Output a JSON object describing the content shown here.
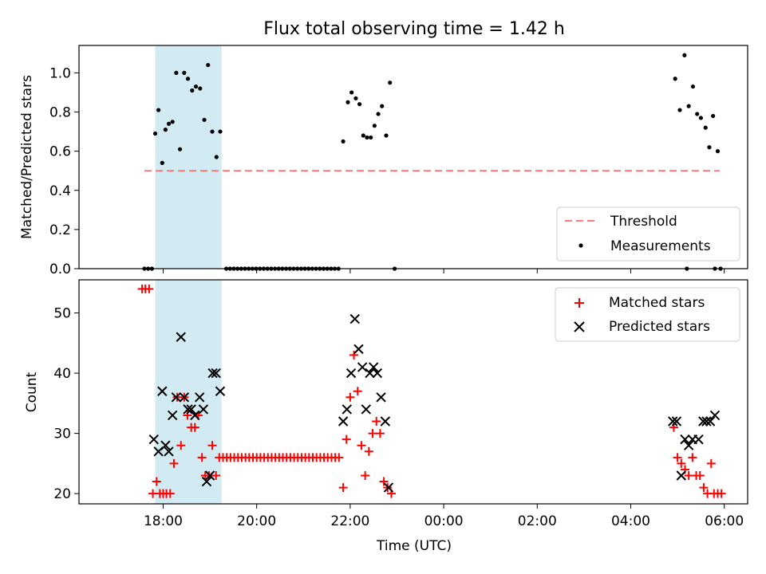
{
  "figure": {
    "title": "Flux total observing time = 1.42 h"
  },
  "chart_data": [
    {
      "type": "scatter",
      "ylabel": "Matched/Predicted stars",
      "xlabel": "",
      "x_unit": "hours (UTC, continuing past midnight)",
      "xlim": [
        16.2,
        30.5
      ],
      "ylim": [
        0,
        1.14
      ],
      "yticks": [
        0.0,
        0.2,
        0.4,
        0.6,
        0.8,
        1.0
      ],
      "ytick_labels": [
        "0.0",
        "0.2",
        "0.4",
        "0.6",
        "0.8",
        "1.0"
      ],
      "grid": false,
      "legend_position": "lower-right",
      "highlight_span": [
        17.83,
        19.25
      ],
      "threshold": {
        "name": "Threshold",
        "value": 0.5,
        "x_range": [
          17.6,
          29.9
        ],
        "color": "#ff7777"
      },
      "series": [
        {
          "name": "Measurements",
          "color": "#000000",
          "points": [
            [
              17.6,
              0
            ],
            [
              17.68,
              0
            ],
            [
              17.76,
              0
            ],
            [
              17.83,
              0.69
            ],
            [
              17.9,
              0.81
            ],
            [
              17.98,
              0.54
            ],
            [
              18.05,
              0.71
            ],
            [
              18.12,
              0.74
            ],
            [
              18.2,
              0.75
            ],
            [
              18.28,
              1.0
            ],
            [
              18.36,
              0.61
            ],
            [
              18.45,
              1.0
            ],
            [
              18.53,
              0.97
            ],
            [
              18.62,
              0.91
            ],
            [
              18.7,
              0.93
            ],
            [
              18.79,
              0.92
            ],
            [
              18.88,
              0.76
            ],
            [
              18.96,
              1.04
            ],
            [
              19.05,
              0.7
            ],
            [
              19.14,
              0.57
            ],
            [
              19.22,
              0.7
            ],
            [
              19.35,
              0
            ],
            [
              19.43,
              0
            ],
            [
              19.51,
              0
            ],
            [
              19.59,
              0
            ],
            [
              19.67,
              0
            ],
            [
              19.75,
              0
            ],
            [
              19.83,
              0
            ],
            [
              19.91,
              0
            ],
            [
              19.99,
              0
            ],
            [
              20.07,
              0
            ],
            [
              20.15,
              0
            ],
            [
              20.23,
              0
            ],
            [
              20.31,
              0
            ],
            [
              20.39,
              0
            ],
            [
              20.47,
              0
            ],
            [
              20.55,
              0
            ],
            [
              20.63,
              0
            ],
            [
              20.71,
              0
            ],
            [
              20.79,
              0
            ],
            [
              20.87,
              0
            ],
            [
              20.95,
              0
            ],
            [
              21.03,
              0
            ],
            [
              21.11,
              0
            ],
            [
              21.19,
              0
            ],
            [
              21.27,
              0
            ],
            [
              21.35,
              0
            ],
            [
              21.43,
              0
            ],
            [
              21.51,
              0
            ],
            [
              21.59,
              0
            ],
            [
              21.67,
              0
            ],
            [
              21.75,
              0
            ],
            [
              21.85,
              0.65
            ],
            [
              21.95,
              0.85
            ],
            [
              22.03,
              0.9
            ],
            [
              22.12,
              0.87
            ],
            [
              22.2,
              0.84
            ],
            [
              22.28,
              0.68
            ],
            [
              22.36,
              0.67
            ],
            [
              22.44,
              0.67
            ],
            [
              22.52,
              0.73
            ],
            [
              22.6,
              0.79
            ],
            [
              22.68,
              0.83
            ],
            [
              22.77,
              0.68
            ],
            [
              22.85,
              0.95
            ],
            [
              22.95,
              0
            ],
            [
              29.2,
              0
            ],
            [
              29.8,
              0
            ],
            [
              29.92,
              0
            ],
            [
              28.95,
              0.97
            ],
            [
              29.05,
              0.81
            ],
            [
              29.15,
              1.09
            ],
            [
              29.24,
              0.83
            ],
            [
              29.33,
              0.93
            ],
            [
              29.42,
              0.79
            ],
            [
              29.5,
              0.77
            ],
            [
              29.6,
              0.72
            ],
            [
              29.68,
              0.62
            ],
            [
              29.76,
              0.78
            ],
            [
              29.86,
              0.6
            ]
          ]
        }
      ]
    },
    {
      "type": "scatter",
      "ylabel": "Count",
      "xlabel": "Time (UTC)",
      "x_unit": "hours (UTC, continuing past midnight)",
      "xlim": [
        16.2,
        30.5
      ],
      "ylim": [
        18.3,
        55.5
      ],
      "yticks": [
        20,
        30,
        40,
        50
      ],
      "ytick_labels": [
        "20",
        "30",
        "40",
        "50"
      ],
      "xticks": [
        18,
        20,
        22,
        24,
        26,
        28,
        30
      ],
      "xtick_labels": [
        "18:00",
        "20:00",
        "22:00",
        "00:00",
        "02:00",
        "04:00",
        "06:00"
      ],
      "grid": false,
      "legend_position": "upper-right",
      "highlight_span": [
        17.83,
        19.25
      ],
      "series": [
        {
          "name": "Matched stars",
          "marker": "plus",
          "color": "#ff0000",
          "points": [
            [
              17.55,
              54
            ],
            [
              17.62,
              54
            ],
            [
              17.7,
              54
            ],
            [
              17.78,
              20
            ],
            [
              17.86,
              22
            ],
            [
              17.93,
              20
            ],
            [
              18.0,
              20
            ],
            [
              18.07,
              20
            ],
            [
              18.15,
              20
            ],
            [
              18.23,
              25
            ],
            [
              18.3,
              36
            ],
            [
              18.38,
              28
            ],
            [
              18.45,
              36
            ],
            [
              18.52,
              33
            ],
            [
              18.6,
              31
            ],
            [
              18.68,
              31
            ],
            [
              18.75,
              33
            ],
            [
              18.83,
              26
            ],
            [
              18.9,
              23
            ],
            [
              18.98,
              23
            ],
            [
              19.05,
              28
            ],
            [
              19.13,
              23
            ],
            [
              19.2,
              26
            ],
            [
              19.28,
              26
            ],
            [
              19.36,
              26
            ],
            [
              19.44,
              26
            ],
            [
              19.52,
              26
            ],
            [
              19.6,
              26
            ],
            [
              19.68,
              26
            ],
            [
              19.76,
              26
            ],
            [
              19.84,
              26
            ],
            [
              19.92,
              26
            ],
            [
              20.0,
              26
            ],
            [
              20.08,
              26
            ],
            [
              20.16,
              26
            ],
            [
              20.24,
              26
            ],
            [
              20.32,
              26
            ],
            [
              20.4,
              26
            ],
            [
              20.48,
              26
            ],
            [
              20.56,
              26
            ],
            [
              20.64,
              26
            ],
            [
              20.72,
              26
            ],
            [
              20.8,
              26
            ],
            [
              20.88,
              26
            ],
            [
              20.96,
              26
            ],
            [
              21.04,
              26
            ],
            [
              21.12,
              26
            ],
            [
              21.2,
              26
            ],
            [
              21.28,
              26
            ],
            [
              21.36,
              26
            ],
            [
              21.44,
              26
            ],
            [
              21.52,
              26
            ],
            [
              21.6,
              26
            ],
            [
              21.68,
              26
            ],
            [
              21.76,
              26
            ],
            [
              21.85,
              21
            ],
            [
              21.92,
              29
            ],
            [
              22.0,
              36
            ],
            [
              22.08,
              43
            ],
            [
              22.16,
              37
            ],
            [
              22.24,
              28
            ],
            [
              22.32,
              23
            ],
            [
              22.4,
              27
            ],
            [
              22.48,
              30
            ],
            [
              22.56,
              32
            ],
            [
              22.64,
              30
            ],
            [
              22.72,
              22
            ],
            [
              22.8,
              21
            ],
            [
              22.88,
              20
            ],
            [
              28.92,
              31
            ],
            [
              29.0,
              26
            ],
            [
              29.08,
              25
            ],
            [
              29.16,
              24
            ],
            [
              29.24,
              23
            ],
            [
              29.32,
              26
            ],
            [
              29.4,
              23
            ],
            [
              29.48,
              23
            ],
            [
              29.56,
              21
            ],
            [
              29.64,
              20
            ],
            [
              29.72,
              25
            ],
            [
              29.78,
              20
            ],
            [
              29.86,
              20
            ],
            [
              29.94,
              20
            ]
          ]
        },
        {
          "name": "Predicted stars",
          "marker": "x",
          "color": "#000000",
          "points": [
            [
              17.8,
              29
            ],
            [
              17.9,
              27
            ],
            [
              17.98,
              37
            ],
            [
              18.05,
              28
            ],
            [
              18.12,
              27
            ],
            [
              18.2,
              33
            ],
            [
              18.28,
              36
            ],
            [
              18.38,
              46
            ],
            [
              18.45,
              36
            ],
            [
              18.53,
              34
            ],
            [
              18.6,
              34
            ],
            [
              18.68,
              33
            ],
            [
              18.78,
              36
            ],
            [
              18.86,
              34
            ],
            [
              18.93,
              22
            ],
            [
              19.0,
              23
            ],
            [
              19.06,
              40
            ],
            [
              19.13,
              40
            ],
            [
              19.22,
              37
            ],
            [
              21.85,
              32
            ],
            [
              21.93,
              34
            ],
            [
              22.02,
              40
            ],
            [
              22.1,
              49
            ],
            [
              22.18,
              44
            ],
            [
              22.26,
              41
            ],
            [
              22.34,
              34
            ],
            [
              22.42,
              40
            ],
            [
              22.5,
              41
            ],
            [
              22.58,
              40
            ],
            [
              22.66,
              36
            ],
            [
              22.75,
              32
            ],
            [
              22.82,
              21
            ],
            [
              28.9,
              32
            ],
            [
              28.98,
              32
            ],
            [
              29.08,
              23
            ],
            [
              29.16,
              29
            ],
            [
              29.24,
              28
            ],
            [
              29.32,
              29
            ],
            [
              29.45,
              29
            ],
            [
              29.55,
              32
            ],
            [
              29.62,
              32
            ],
            [
              29.7,
              32
            ],
            [
              29.8,
              33
            ]
          ]
        }
      ]
    }
  ]
}
